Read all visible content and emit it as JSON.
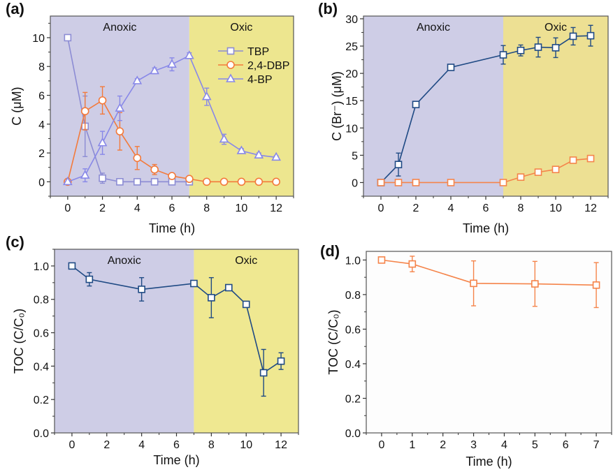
{
  "figure": {
    "colors": {
      "anoxic_bg": "#cecde6",
      "oxic_bg_a": "#ede68f",
      "oxic_bg_b": "#ede093",
      "oxic_bg_c": "#efe891",
      "tbp": "#8c8cd4",
      "dbp": "#f37a3b",
      "bp4": "#8888e8",
      "br_total": "#1f4a84",
      "br_orange": "#f5844a",
      "toc_blue": "#1f4a84",
      "toc_orange": "#f5844a"
    }
  },
  "chart_data": [
    {
      "id": "a",
      "panel_label": "(a)",
      "type": "line",
      "title": "",
      "xlabel": "Time (h)",
      "ylabel": "C (μM)",
      "xlim": [
        -1,
        13
      ],
      "ylim": [
        -1,
        11.5
      ],
      "xticks": [
        0,
        2,
        4,
        6,
        8,
        10,
        12
      ],
      "xtick_labels": [
        "0",
        "2",
        "4",
        "6",
        "8",
        "10",
        "12"
      ],
      "yticks": [
        0,
        2,
        4,
        6,
        8,
        10
      ],
      "ytick_labels": [
        "0",
        "2",
        "4",
        "6",
        "8",
        "10"
      ],
      "grid": false,
      "legend_position": "top-right",
      "regions": [
        {
          "label": "Anoxic",
          "from": -1,
          "to": 7,
          "color_key": "anoxic_bg"
        },
        {
          "label": "Oxic",
          "from": 7,
          "to": 13,
          "color_key": "oxic_bg_a"
        }
      ],
      "series": [
        {
          "name": "TBP",
          "marker": "square",
          "color_key": "tbp",
          "x": [
            0,
            1,
            2,
            3,
            4,
            5,
            6,
            7
          ],
          "y": [
            10.0,
            3.85,
            0.25,
            0,
            0,
            0,
            0,
            0
          ],
          "err": [
            0,
            2.1,
            0.35,
            0,
            0,
            0,
            0,
            0
          ]
        },
        {
          "name": "2,4-DBP",
          "marker": "circle",
          "color_key": "dbp",
          "x": [
            0,
            1,
            2,
            3,
            4,
            5,
            6,
            7,
            8,
            9,
            10,
            11,
            12
          ],
          "y": [
            0,
            4.9,
            5.65,
            3.5,
            1.65,
            0.85,
            0.4,
            0.2,
            0,
            0,
            0,
            0,
            0
          ],
          "err": [
            0,
            1.3,
            0.95,
            1.3,
            0.8,
            0.35,
            0,
            0,
            0,
            0,
            0,
            0,
            0
          ]
        },
        {
          "name": "4-BP",
          "marker": "triangle",
          "color_key": "bp4",
          "x": [
            0,
            1,
            2,
            3,
            4,
            5,
            6,
            7,
            8,
            9,
            10,
            11,
            12
          ],
          "y": [
            0,
            0.45,
            2.7,
            5.1,
            7.0,
            7.7,
            8.15,
            8.75,
            5.9,
            2.95,
            2.15,
            1.85,
            1.7
          ],
          "err": [
            0,
            0.45,
            0.8,
            0.85,
            0.15,
            0.2,
            0.45,
            0.2,
            0.6,
            0.35,
            0.15,
            0.15,
            0.1
          ]
        }
      ]
    },
    {
      "id": "b",
      "panel_label": "(b)",
      "type": "line",
      "title": "",
      "xlabel": "Time (h)",
      "ylabel": "C (Br⁻) (μM)",
      "xlim": [
        -1,
        13
      ],
      "ylim": [
        -2.5,
        30.5
      ],
      "xticks": [
        0,
        2,
        4,
        6,
        8,
        10,
        12
      ],
      "xtick_labels": [
        "0",
        "2",
        "4",
        "6",
        "8",
        "10",
        "12"
      ],
      "yticks": [
        0,
        5,
        10,
        15,
        20,
        25,
        30
      ],
      "ytick_labels": [
        "0",
        "5",
        "10",
        "15",
        "20",
        "25",
        "30"
      ],
      "grid": false,
      "legend_position": "none",
      "regions": [
        {
          "label": "Anoxic",
          "from": -1,
          "to": 7,
          "color_key": "anoxic_bg"
        },
        {
          "label": "Oxic",
          "from": 7,
          "to": 13,
          "color_key": "oxic_bg_b"
        }
      ],
      "series": [
        {
          "name": "Br- (dark blue)",
          "marker": "square",
          "color_key": "br_total",
          "x": [
            0,
            1,
            2,
            4,
            7,
            8,
            9,
            10,
            11,
            12
          ],
          "y": [
            0,
            3.3,
            14.3,
            21.1,
            23.4,
            24.2,
            24.8,
            24.7,
            26.8,
            26.9
          ],
          "err": [
            0,
            2.1,
            0.2,
            0.4,
            1.7,
            1.0,
            1.8,
            1.8,
            1.6,
            1.9
          ]
        },
        {
          "name": "Br- (orange)",
          "marker": "square",
          "color_key": "br_orange",
          "x": [
            0,
            1,
            2,
            4,
            7,
            8,
            9,
            10,
            11,
            12
          ],
          "y": [
            0,
            0,
            0,
            0,
            0,
            1.0,
            1.9,
            2.4,
            4.1,
            4.4
          ],
          "err": [
            0,
            0,
            0,
            0,
            0,
            0.3,
            0.2,
            0.5,
            0.3,
            0.3
          ]
        }
      ]
    },
    {
      "id": "c",
      "panel_label": "(c)",
      "type": "line",
      "title": "",
      "xlabel": "Time (h)",
      "ylabel": "TOC (C/C₀)",
      "xlim": [
        -1,
        13
      ],
      "ylim": [
        0,
        1.1
      ],
      "xticks": [
        0,
        2,
        4,
        6,
        8,
        10,
        12
      ],
      "xtick_labels": [
        "0",
        "2",
        "4",
        "6",
        "8",
        "10",
        "12"
      ],
      "yticks": [
        0.0,
        0.2,
        0.4,
        0.6,
        0.8,
        1.0
      ],
      "ytick_labels": [
        "0.0",
        "0.2",
        "0.4",
        "0.6",
        "0.8",
        "1.0"
      ],
      "grid": false,
      "legend_position": "none",
      "regions": [
        {
          "label": "Anoxic",
          "from": -1,
          "to": 7,
          "color_key": "anoxic_bg"
        },
        {
          "label": "Oxic",
          "from": 7,
          "to": 13,
          "color_key": "oxic_bg_c"
        }
      ],
      "series": [
        {
          "name": "TOC",
          "marker": "square",
          "color_key": "toc_blue",
          "x": [
            0,
            1,
            4,
            7,
            8,
            9,
            10,
            11,
            12
          ],
          "y": [
            1.0,
            0.92,
            0.86,
            0.895,
            0.81,
            0.87,
            0.77,
            0.36,
            0.43
          ],
          "err": [
            0,
            0.04,
            0.07,
            0,
            0.12,
            0,
            0,
            0.14,
            0.05
          ]
        }
      ]
    },
    {
      "id": "d",
      "panel_label": "(d)",
      "type": "line",
      "title": "",
      "xlabel": "Time (h)",
      "ylabel": "TOC (C/C₀)",
      "xlim": [
        -0.5,
        7.5
      ],
      "ylim": [
        0,
        1.05
      ],
      "xticks": [
        0,
        1,
        2,
        3,
        4,
        5,
        6,
        7
      ],
      "xtick_labels": [
        "0",
        "1",
        "2",
        "3",
        "4",
        "5",
        "6",
        "7"
      ],
      "yticks": [
        0.0,
        0.2,
        0.4,
        0.6,
        0.8,
        1.0
      ],
      "ytick_labels": [
        "0.0",
        "0.2",
        "0.4",
        "0.6",
        "0.8",
        "1.0"
      ],
      "grid": false,
      "legend_position": "none",
      "regions": [],
      "series": [
        {
          "name": "TOC",
          "marker": "square",
          "color_key": "toc_orange",
          "x": [
            0,
            1,
            3,
            5,
            7
          ],
          "y": [
            1.0,
            0.977,
            0.865,
            0.862,
            0.855
          ],
          "err": [
            0,
            0.045,
            0.13,
            0.13,
            0.13
          ]
        }
      ]
    }
  ]
}
